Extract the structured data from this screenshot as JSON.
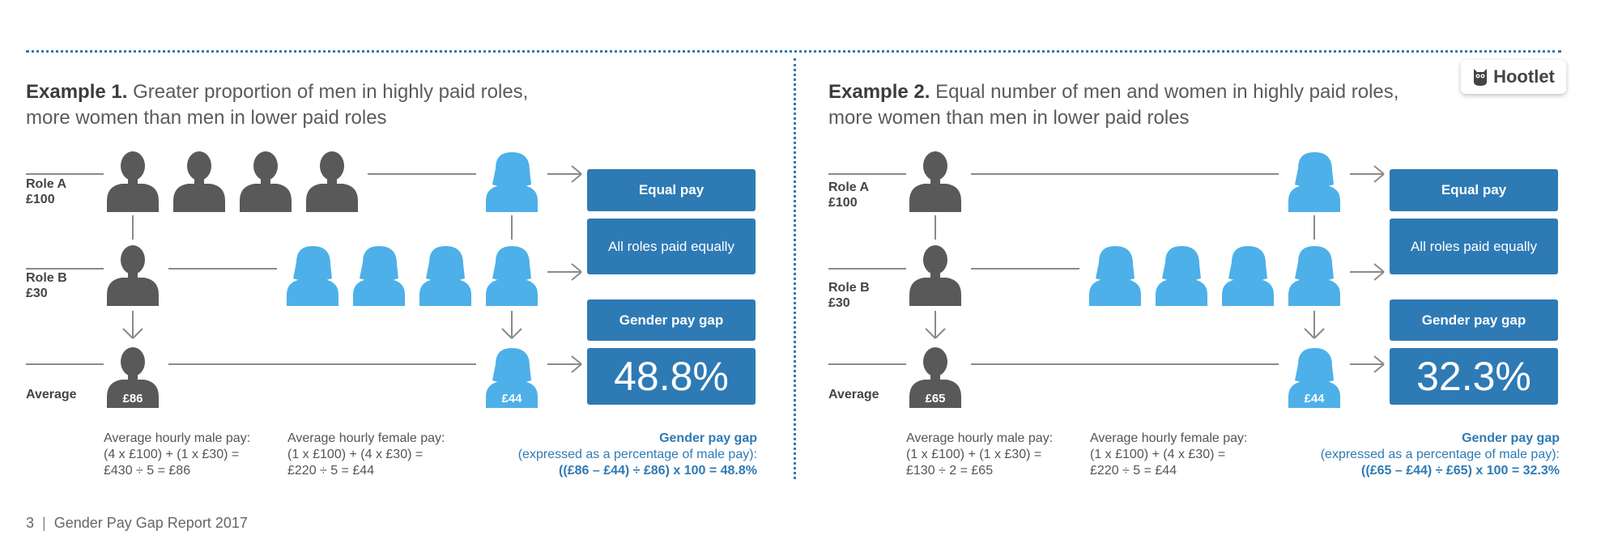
{
  "brand": {
    "name": "Hootlet",
    "icon": "owl-logo-icon"
  },
  "footer": {
    "page_number": "3",
    "separator": "|",
    "title": "Gender Pay Gap Report 2017"
  },
  "colors": {
    "male": "#595959",
    "female": "#4db0e8",
    "box": "#2e7ab5",
    "line": "#8a8a8a"
  },
  "examples": [
    {
      "title_lead": "Example 1.",
      "title_line1": "Greater proportion of men in highly paid roles,",
      "title_line2": "more women than men in lower paid roles",
      "role_a_name": "Role A",
      "role_a_pay": "£100",
      "role_b_name": "Role B",
      "role_b_pay": "£30",
      "average_label": "Average",
      "role_a_men": 4,
      "role_b_women": 4,
      "avg_male": "£86",
      "avg_female": "£44",
      "box_equal": "Equal pay",
      "box_all_roles": "All roles paid equally",
      "box_gap": "Gender pay gap",
      "gap_value": "48.8%",
      "male_calc": [
        "Average hourly male pay:",
        "(4 x £100) + (1 x £30) =",
        "£430 ÷ 5 = £86"
      ],
      "female_calc": [
        "Average hourly female pay:",
        "(1 x £100) + (4 x £30) =",
        "£220 ÷ 5 = £44"
      ],
      "gap_calc": [
        "Gender pay gap",
        "(expressed as a percentage of male pay):",
        "((£86 – £44) ÷ £86) x 100 = 48.8%"
      ]
    },
    {
      "title_lead": "Example 2.",
      "title_line1": "Equal number of men and women in highly paid roles,",
      "title_line2": "more women than men in lower paid roles",
      "role_a_name": "Role A",
      "role_a_pay": "£100",
      "role_b_name": "Role B",
      "role_b_pay": "£30",
      "average_label": "Average",
      "role_a_men": 1,
      "role_b_women": 4,
      "avg_male": "£65",
      "avg_female": "£44",
      "box_equal": "Equal pay",
      "box_all_roles": "All roles paid equally",
      "box_gap": "Gender pay gap",
      "gap_value": "32.3%",
      "male_calc": [
        "Average hourly male pay:",
        "(1 x £100) + (1 x £30) =",
        "£130 ÷ 2 = £65"
      ],
      "female_calc": [
        "Average hourly female pay:",
        "(1 x £100) + (4 x £30) =",
        "£220 ÷ 5 = £44"
      ],
      "gap_calc": [
        "Gender pay gap",
        "(expressed as a percentage of male pay):",
        "((£65 – £44) ÷ £65) x 100 = 32.3%"
      ]
    }
  ]
}
